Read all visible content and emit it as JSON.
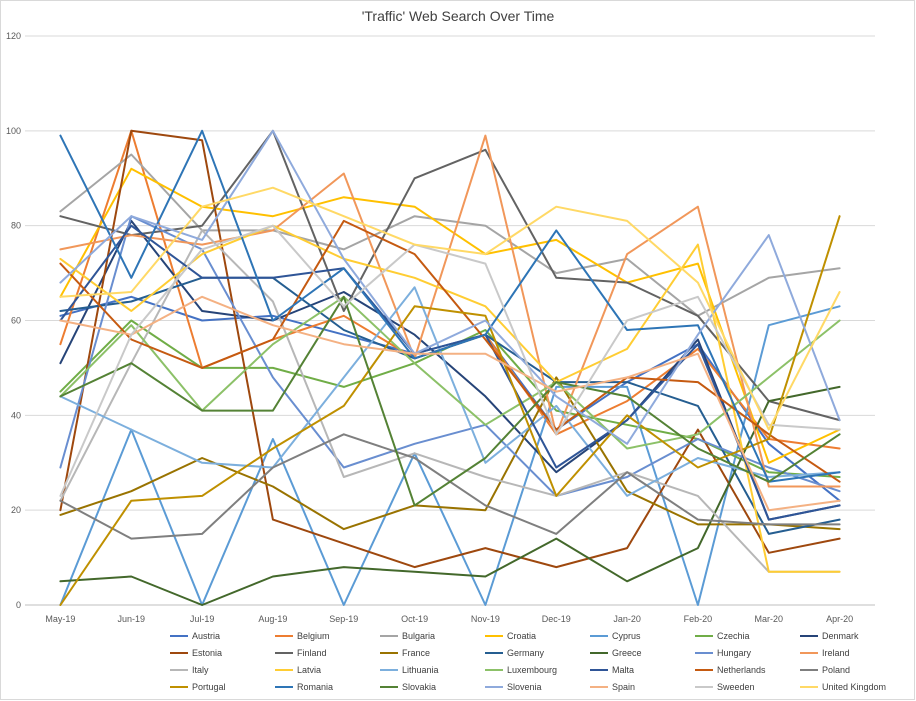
{
  "chart_data": {
    "type": "line",
    "title": "'Traffic' Web Search Over Time",
    "xlabel": "",
    "ylabel": "",
    "ylim": [
      0,
      120
    ],
    "yticks": [
      0,
      20,
      40,
      60,
      80,
      100,
      120
    ],
    "grid": true,
    "legend_position": "bottom",
    "categories": [
      "May-19",
      "Jun-19",
      "Jul-19",
      "Aug-19",
      "Sep-19",
      "Oct-19",
      "Nov-19",
      "Dec-19",
      "Jan-20",
      "Feb-20",
      "Mar-20",
      "Apr-20"
    ],
    "series": [
      {
        "name": "Austria",
        "color": "#4472c4",
        "values": [
          61,
          65,
          60,
          61,
          57,
          53,
          57,
          37,
          47,
          55,
          34,
          22
        ]
      },
      {
        "name": "Belgium",
        "color": "#ed7d31",
        "values": [
          55,
          100,
          50,
          56,
          61,
          52,
          57,
          36,
          43,
          54,
          35,
          33
        ]
      },
      {
        "name": "Bulgaria",
        "color": "#a5a5a5",
        "values": [
          83,
          95,
          79,
          79,
          75,
          82,
          80,
          70,
          73,
          61,
          69,
          71
        ]
      },
      {
        "name": "Croatia",
        "color": "#ffc000",
        "values": [
          65,
          92,
          84,
          82,
          86,
          84,
          74,
          77,
          68,
          72,
          30,
          37
        ]
      },
      {
        "name": "Cyprus",
        "color": "#5b9bd5",
        "values": [
          0,
          37,
          0,
          35,
          0,
          32,
          0,
          46,
          46,
          0,
          59,
          63
        ]
      },
      {
        "name": "Czechia",
        "color": "#70ad47",
        "values": [
          45,
          60,
          50,
          50,
          46,
          51,
          58,
          41,
          38,
          35,
          28,
          27
        ]
      },
      {
        "name": "Denmark",
        "color": "#264478",
        "values": [
          51,
          81,
          62,
          60,
          66,
          57,
          44,
          28,
          39,
          56,
          18,
          21
        ]
      },
      {
        "name": "Estonia",
        "color": "#9e480e",
        "values": [
          20,
          100,
          98,
          18,
          13,
          8,
          12,
          8,
          12,
          37,
          11,
          14
        ]
      },
      {
        "name": "Finland",
        "color": "#636363",
        "values": [
          82,
          78,
          80,
          100,
          62,
          90,
          96,
          69,
          68,
          61,
          43,
          39
        ]
      },
      {
        "name": "France",
        "color": "#997300",
        "values": [
          19,
          24,
          31,
          25,
          16,
          21,
          20,
          48,
          24,
          17,
          17,
          16
        ]
      },
      {
        "name": "Germany",
        "color": "#255e91",
        "values": [
          62,
          64,
          69,
          69,
          58,
          52,
          57,
          47,
          47,
          42,
          15,
          18
        ]
      },
      {
        "name": "Greece",
        "color": "#43682b",
        "values": [
          5,
          6,
          0,
          6,
          8,
          7,
          6,
          14,
          5,
          12,
          43,
          46
        ]
      },
      {
        "name": "Hungary",
        "color": "#698ed0",
        "values": [
          29,
          82,
          75,
          48,
          29,
          34,
          38,
          23,
          27,
          35,
          29,
          24
        ]
      },
      {
        "name": "Ireland",
        "color": "#f1975a",
        "values": [
          75,
          78,
          76,
          79,
          91,
          52,
          99,
          36,
          74,
          84,
          25,
          25
        ]
      },
      {
        "name": "Italy",
        "color": "#b7b7b7",
        "values": [
          22,
          51,
          79,
          64,
          27,
          32,
          27,
          23,
          28,
          23,
          7,
          7
        ]
      },
      {
        "name": "Latvia",
        "color": "#ffcd33",
        "values": [
          73,
          62,
          74,
          80,
          73,
          69,
          63,
          47,
          54,
          76,
          7,
          7
        ]
      },
      {
        "name": "Lithuania",
        "color": "#7cafdd",
        "values": [
          44,
          37,
          30,
          29,
          48,
          67,
          30,
          42,
          23,
          31,
          27,
          28
        ]
      },
      {
        "name": "Luxembourg",
        "color": "#8cc168",
        "values": [
          44,
          59,
          41,
          55,
          65,
          51,
          38,
          47,
          33,
          36,
          48,
          60
        ]
      },
      {
        "name": "Malta",
        "color": "#2f5597",
        "values": [
          60,
          80,
          69,
          69,
          71,
          53,
          57,
          29,
          39,
          55,
          18,
          21
        ]
      },
      {
        "name": "Netherlands",
        "color": "#c55a11",
        "values": [
          72,
          56,
          50,
          56,
          81,
          74,
          56,
          37,
          48,
          47,
          36,
          26
        ]
      },
      {
        "name": "Poland",
        "color": "#7f7f7f",
        "values": [
          22,
          14,
          15,
          29,
          36,
          31,
          21,
          15,
          28,
          18,
          17,
          17
        ]
      },
      {
        "name": "Portugal",
        "color": "#bf9000",
        "values": [
          0,
          22,
          23,
          33,
          42,
          63,
          61,
          23,
          40,
          29,
          35,
          82
        ]
      },
      {
        "name": "Romania",
        "color": "#2e75b6",
        "values": [
          99,
          69,
          100,
          60,
          71,
          52,
          57,
          79,
          58,
          59,
          26,
          28
        ]
      },
      {
        "name": "Slovakia",
        "color": "#548235",
        "values": [
          44,
          51,
          41,
          41,
          65,
          21,
          31,
          47,
          44,
          33,
          26,
          36
        ]
      },
      {
        "name": "Slovenia",
        "color": "#8faadc",
        "values": [
          68,
          82,
          77,
          100,
          73,
          53,
          60,
          44,
          34,
          57,
          78,
          39
        ]
      },
      {
        "name": "Spain",
        "color": "#f4b183",
        "values": [
          60,
          57,
          65,
          59,
          55,
          53,
          53,
          45,
          48,
          53,
          20,
          22
        ]
      },
      {
        "name": "Sweeden",
        "color": "#c9c9c9",
        "values": [
          23,
          57,
          75,
          80,
          63,
          76,
          72,
          36,
          60,
          65,
          38,
          37
        ]
      },
      {
        "name": "United Kingdom",
        "color": "#ffd966",
        "values": [
          65,
          66,
          84,
          88,
          82,
          76,
          74,
          84,
          81,
          68,
          37,
          66
        ]
      }
    ]
  }
}
